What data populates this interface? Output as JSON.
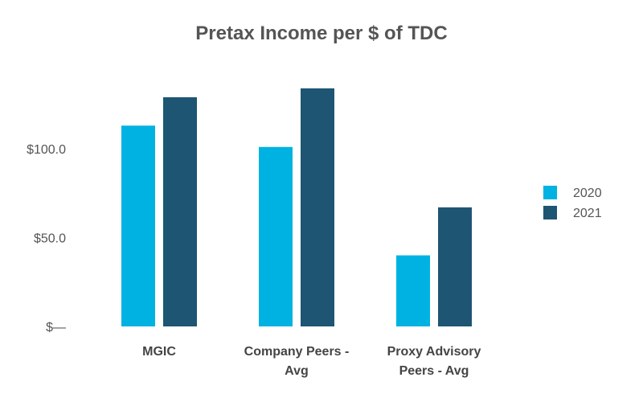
{
  "chart_data": {
    "type": "bar",
    "title": "Pretax Income per $ of TDC",
    "xlabel": "",
    "ylabel": "",
    "categories": [
      [
        "MGIC"
      ],
      [
        "Company Peers -",
        "Avg"
      ],
      [
        "Proxy Advisory",
        "Peers - Avg"
      ]
    ],
    "series": [
      {
        "name": "2020",
        "color": "#00b2e2",
        "values": [
          113,
          101,
          40
        ]
      },
      {
        "name": "2021",
        "color": "#1e5573",
        "values": [
          129,
          134,
          67
        ]
      }
    ],
    "yticks": [
      {
        "value": 0,
        "label": "$—"
      },
      {
        "value": 50,
        "label": "$50.0"
      },
      {
        "value": 100,
        "label": "$100.0"
      }
    ],
    "ylim": [
      0,
      134
    ],
    "grid": false,
    "legend_position": "right"
  }
}
